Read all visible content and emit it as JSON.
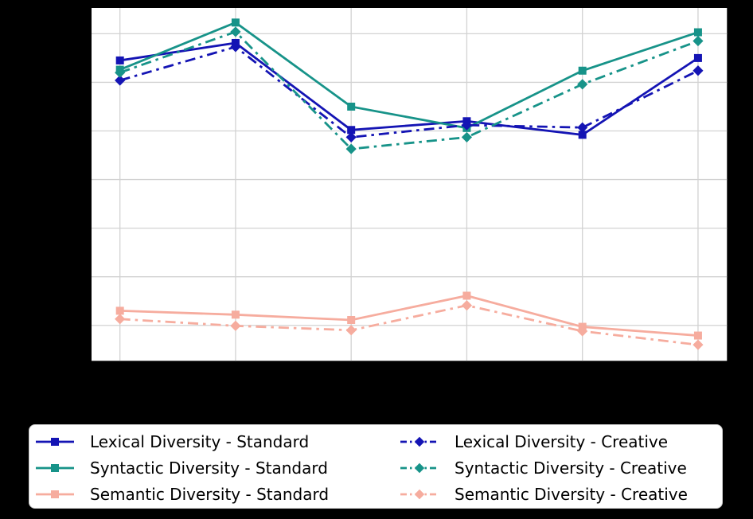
{
  "figure": {
    "background": "#000000",
    "plot_background": "#ffffff",
    "grid_color": "#d2d2d2",
    "legend_border_color": "#cccccc",
    "legend_background": "#ffffff",
    "text_color": "#000000"
  },
  "chart_data": {
    "type": "line",
    "title": "",
    "xlabel": "",
    "ylabel": "",
    "x": [
      1,
      2,
      3,
      4,
      5,
      6
    ],
    "x_tick_labels_visible": false,
    "y_tick_labels_visible": false,
    "grid": true,
    "ylim": [
      0.227,
      0.953
    ],
    "y_gridlines": [
      0.3,
      0.4,
      0.5,
      0.6,
      0.7,
      0.8,
      0.9
    ],
    "legend_position": "below-chart, two columns",
    "series": [
      {
        "name": "Lexical Diversity - Standard",
        "color": "#1414b4",
        "line_style": "solid",
        "marker": "square",
        "values": [
          0.845,
          0.881,
          0.702,
          0.72,
          0.692,
          0.85
        ]
      },
      {
        "name": "Syntactic Diversity - Standard",
        "color": "#179389",
        "line_style": "solid",
        "marker": "square",
        "values": [
          0.826,
          0.923,
          0.75,
          0.706,
          0.824,
          0.903
        ]
      },
      {
        "name": "Semantic Diversity - Standard",
        "color": "#f6ac9e",
        "line_style": "solid",
        "marker": "square",
        "values": [
          0.33,
          0.322,
          0.311,
          0.361,
          0.297,
          0.279
        ]
      },
      {
        "name": "Lexical Diversity - Creative",
        "color": "#1414b4",
        "line_style": "dashdot",
        "marker": "diamond",
        "values": [
          0.804,
          0.873,
          0.687,
          0.712,
          0.707,
          0.824
        ]
      },
      {
        "name": "Syntactic Diversity - Creative",
        "color": "#179389",
        "line_style": "dashdot",
        "marker": "diamond",
        "values": [
          0.82,
          0.904,
          0.663,
          0.687,
          0.796,
          0.885
        ]
      },
      {
        "name": "Semantic Diversity - Creative",
        "color": "#f6ac9e",
        "line_style": "dashdot",
        "marker": "diamond",
        "values": [
          0.313,
          0.299,
          0.29,
          0.341,
          0.288,
          0.26
        ]
      }
    ]
  }
}
